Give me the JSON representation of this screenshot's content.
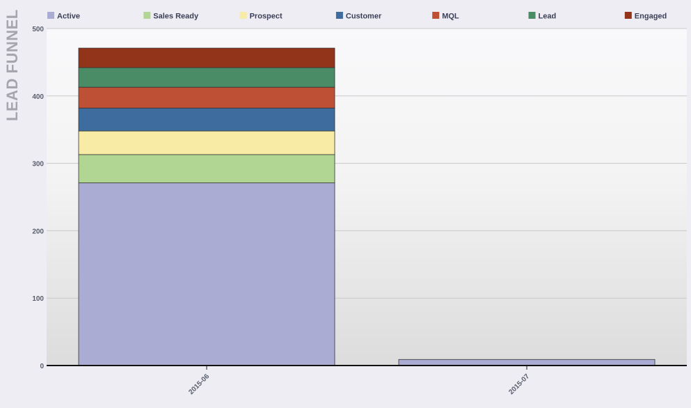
{
  "chart_data": {
    "type": "bar",
    "stacked": true,
    "title": "LEAD FUNNEL",
    "categories": [
      "2015-06",
      "2015-07"
    ],
    "series": [
      {
        "name": "Active",
        "color": "#aaacd4",
        "values": [
          271,
          9
        ]
      },
      {
        "name": "Sales Ready",
        "color": "#b1d592",
        "values": [
          42,
          0
        ]
      },
      {
        "name": "Prospect",
        "color": "#f7eba5",
        "values": [
          35,
          0
        ]
      },
      {
        "name": "Customer",
        "color": "#3f6c9f",
        "values": [
          34,
          0
        ]
      },
      {
        "name": "MQL",
        "color": "#bd5035",
        "values": [
          31,
          0
        ]
      },
      {
        "name": "Lead",
        "color": "#4a8c66",
        "values": [
          29,
          0
        ]
      },
      {
        "name": "Engaged",
        "color": "#92341a",
        "values": [
          29,
          0
        ]
      }
    ],
    "ylim": [
      0,
      500
    ],
    "yticks": [
      "0",
      "100",
      "200",
      "300",
      "400",
      "500"
    ],
    "grid": true,
    "legend": "top"
  }
}
